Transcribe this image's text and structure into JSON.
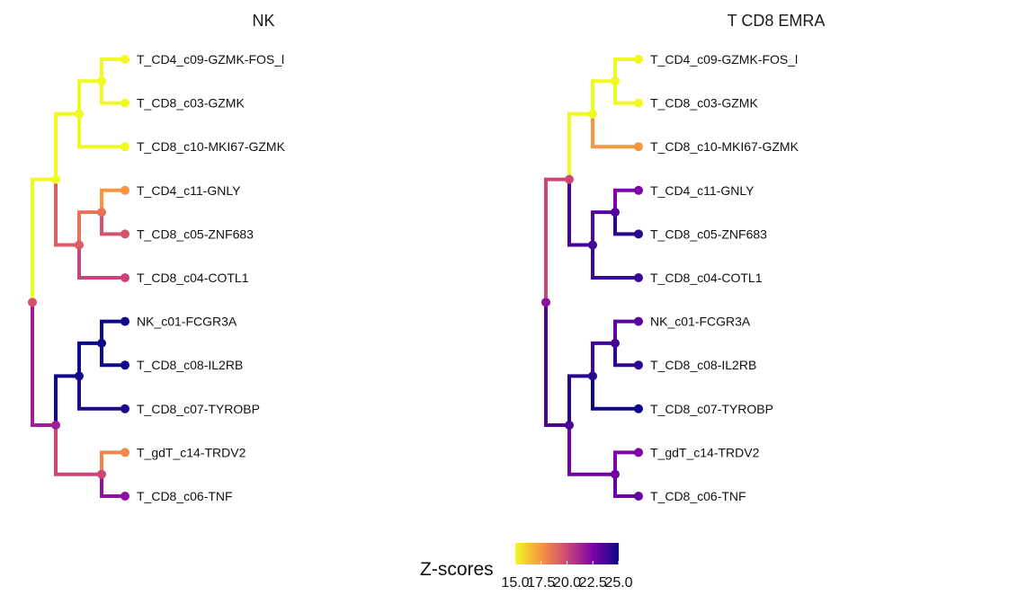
{
  "chart_data": [
    {
      "type": "dendrogram",
      "title": "NK",
      "leaves": [
        {
          "label": "T_CD4_c09-GZMK-FOS_l",
          "z": 15.0
        },
        {
          "label": "T_CD8_c03-GZMK",
          "z": 15.0
        },
        {
          "label": "T_CD8_c10-MKI67-GZMK",
          "z": 15.0
        },
        {
          "label": "T_CD4_c11-GNLY",
          "z": 17.5
        },
        {
          "label": "T_CD8_c05-ZNF683",
          "z": 19.6
        },
        {
          "label": "T_CD8_c04-COTL1",
          "z": 20.1
        },
        {
          "label": "NK_c01-FCGR3A",
          "z": 25.2
        },
        {
          "label": "T_CD8_c08-IL2RB",
          "z": 25.1
        },
        {
          "label": "T_CD8_c07-TYROBP",
          "z": 24.6
        },
        {
          "label": "T_gdT_c14-TRDV2",
          "z": 18.0
        },
        {
          "label": "T_CD8_c06-TNF",
          "z": 22.0
        }
      ],
      "internal_nodes": [
        {
          "children": [
            0,
            1
          ],
          "z": 15.0
        },
        {
          "children": [
            "n0",
            2
          ],
          "z": 15.0
        },
        {
          "children": [
            3,
            4
          ],
          "z": 18.6
        },
        {
          "children": [
            "n2",
            5
          ],
          "z": 19.3
        },
        {
          "children": [
            "n1",
            "n3"
          ],
          "z": 15.0
        },
        {
          "children": [
            6,
            7
          ],
          "z": 25.2
        },
        {
          "children": [
            "n5",
            8
          ],
          "z": 24.9
        },
        {
          "children": [
            9,
            10
          ],
          "z": 20.0
        },
        {
          "children": [
            "n6",
            "n7"
          ],
          "z": 21.5
        },
        {
          "children": [
            "n4",
            "n8"
          ],
          "z": 19.6
        }
      ]
    },
    {
      "type": "dendrogram",
      "title": "T CD8 EMRA",
      "leaves": [
        {
          "label": "T_CD4_c09-GZMK-FOS_l",
          "z": 15.0
        },
        {
          "label": "T_CD8_c03-GZMK",
          "z": 15.0
        },
        {
          "label": "T_CD8_c10-MKI67-GZMK",
          "z": 17.5
        },
        {
          "label": "T_CD4_c11-GNLY",
          "z": 22.5
        },
        {
          "label": "T_CD8_c05-ZNF683",
          "z": 24.4
        },
        {
          "label": "T_CD8_c04-COTL1",
          "z": 24.0
        },
        {
          "label": "NK_c01-FCGR3A",
          "z": 23.3
        },
        {
          "label": "T_CD8_c08-IL2RB",
          "z": 24.3
        },
        {
          "label": "T_CD8_c07-TYROBP",
          "z": 25.2
        },
        {
          "label": "T_gdT_c14-TRDV2",
          "z": 22.5
        },
        {
          "label": "T_CD8_c06-TNF",
          "z": 23.1
        }
      ],
      "internal_nodes": [
        {
          "children": [
            0,
            1
          ],
          "z": 15.0
        },
        {
          "children": [
            "n0",
            2
          ],
          "z": 15.0
        },
        {
          "children": [
            3,
            4
          ],
          "z": 23.4
        },
        {
          "children": [
            "n2",
            5
          ],
          "z": 23.8
        },
        {
          "children": [
            "n1",
            "n3"
          ],
          "z": 20.0
        },
        {
          "children": [
            6,
            7
          ],
          "z": 23.8
        },
        {
          "children": [
            "n5",
            8
          ],
          "z": 24.4
        },
        {
          "children": [
            9,
            10
          ],
          "z": 22.8
        },
        {
          "children": [
            "n6",
            "n7"
          ],
          "z": 23.7
        },
        {
          "children": [
            "n4",
            "n8"
          ],
          "z": 22.0
        }
      ]
    }
  ],
  "legend": {
    "title": "Z-scores",
    "min": 15.0,
    "max": 25.0,
    "ticks": [
      "15.0",
      "17.5",
      "20.0",
      "22.5",
      "25.0"
    ],
    "palette": [
      "#f0f921",
      "#f89540",
      "#cc4778",
      "#7e03a8",
      "#0d0887"
    ]
  }
}
